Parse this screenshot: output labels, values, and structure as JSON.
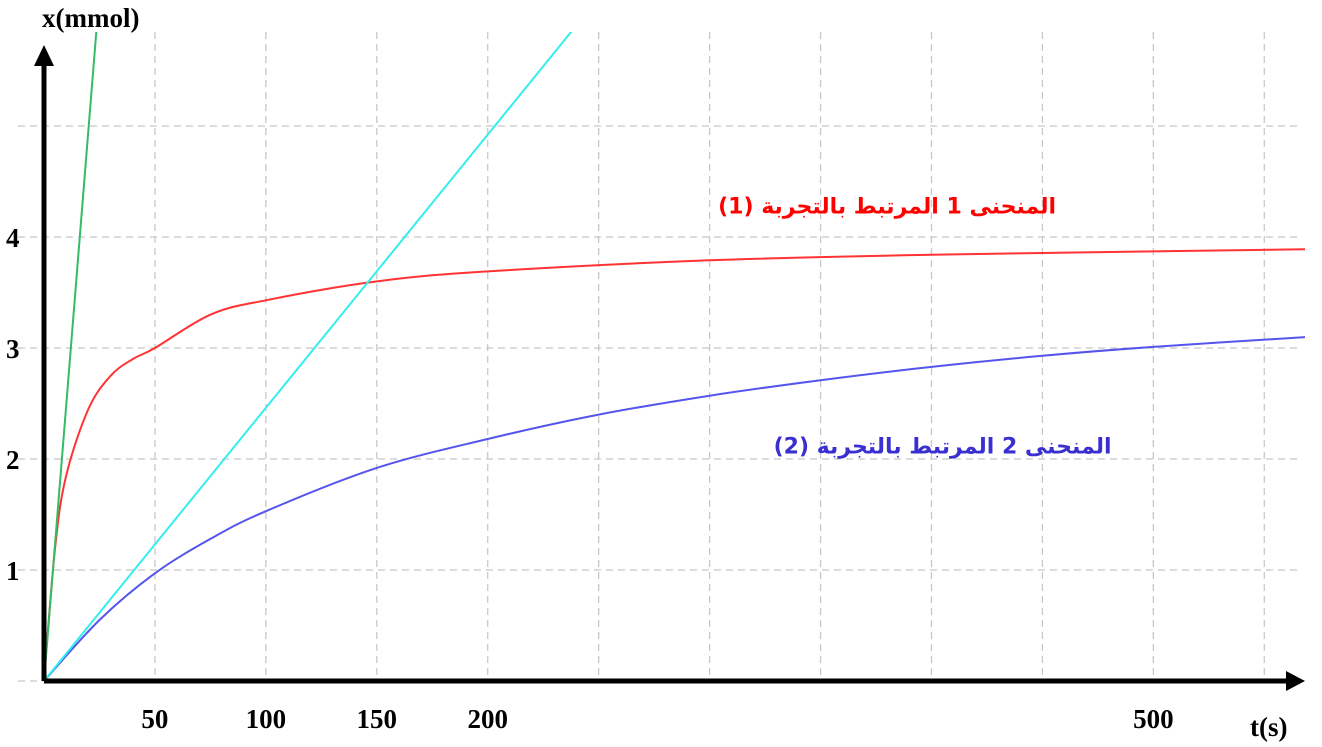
{
  "chart_data": {
    "type": "line",
    "xlabel": "t(s)",
    "ylabel": "x(mmol)",
    "xlim": [
      0,
      570
    ],
    "ylim": [
      0,
      6
    ],
    "grid": true,
    "x_gridlines": [
      0,
      50,
      100,
      150,
      200,
      250,
      300,
      350,
      400,
      450,
      500,
      550
    ],
    "y_gridlines": [
      0,
      1,
      2,
      3,
      4,
      5,
      6
    ],
    "x_tick_labels": [
      {
        "value": 50,
        "label": "50"
      },
      {
        "value": 100,
        "label": "100"
      },
      {
        "value": 150,
        "label": "150"
      },
      {
        "value": 200,
        "label": "200"
      },
      {
        "value": 500,
        "label": "500"
      }
    ],
    "y_tick_labels": [
      {
        "value": 1,
        "label": "1"
      },
      {
        "value": 2,
        "label": "2"
      },
      {
        "value": 3,
        "label": "3"
      },
      {
        "value": 4,
        "label": "4"
      }
    ],
    "series": [
      {
        "color": "#ff3333",
        "x": [
          0,
          5,
          10,
          20,
          30,
          40,
          50,
          75,
          100,
          150,
          200,
          300,
          400,
          500,
          570
        ],
        "y": [
          0,
          1.2,
          1.85,
          2.45,
          2.75,
          2.9,
          3.0,
          3.3,
          3.43,
          3.6,
          3.69,
          3.79,
          3.84,
          3.87,
          3.89
        ]
      },
      {
        "color": "#5555ee",
        "x": [
          0,
          25,
          50,
          75,
          100,
          150,
          200,
          250,
          300,
          350,
          400,
          450,
          500,
          570
        ],
        "y": [
          0,
          0.55,
          0.97,
          1.28,
          1.53,
          1.92,
          2.18,
          2.4,
          2.57,
          2.71,
          2.83,
          2.93,
          3.01,
          3.1
        ]
      },
      {
        "color": "#33eeee",
        "x": [
          0,
          243
        ],
        "y": [
          0,
          5.98
        ]
      },
      {
        "color": "#33bb66",
        "x": [
          0,
          26
        ],
        "y": [
          0,
          6.45
        ]
      }
    ],
    "annotations": [
      {
        "text": "المنحنى 1 المرتبط بالتجربة (1)",
        "color": "#ff0000",
        "x": 380,
        "y": 4.21
      },
      {
        "text": "المنحنى 2 المرتبط بالتجربة (2)",
        "color": "#3a2fd0",
        "x": 405,
        "y": 2.05
      }
    ]
  }
}
